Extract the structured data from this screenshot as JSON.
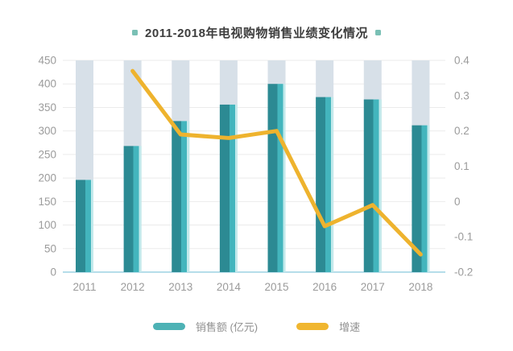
{
  "title": {
    "text": "2011-2018年电视购物销售业绩变化情况"
  },
  "legend": {
    "items": [
      {
        "label": "销售额 (亿元)"
      },
      {
        "label": "增速"
      }
    ]
  },
  "chart_data": {
    "type": "bar+line",
    "title": "2011-2018年电视购物销售业绩变化情况",
    "categories": [
      "2011",
      "2012",
      "2013",
      "2014",
      "2015",
      "2016",
      "2017",
      "2018"
    ],
    "series": [
      {
        "name": "销售额 (亿元)",
        "type": "bar",
        "axis": "left",
        "values": [
          196,
          268,
          321,
          356,
          400,
          372,
          367,
          312
        ]
      },
      {
        "name": "增速",
        "type": "line",
        "axis": "right",
        "values": [
          null,
          0.37,
          0.19,
          0.18,
          0.2,
          -0.07,
          -0.01,
          -0.15
        ]
      }
    ],
    "left_axis": {
      "min": 0,
      "max": 450,
      "ticks": [
        450,
        400,
        350,
        300,
        250,
        200,
        150,
        100,
        50,
        0
      ],
      "tick_labels": [
        "450",
        "400",
        "350",
        "300",
        "250",
        "200",
        "150",
        "100",
        "50",
        "0"
      ]
    },
    "right_axis": {
      "min": -0.2,
      "max": 0.4,
      "ticks": [
        0.4,
        0.3,
        0.2,
        0.1,
        0,
        -0.1,
        -0.2
      ],
      "tick_labels": [
        "0.4",
        "0.3",
        "0.2",
        "0.1",
        "0",
        "-0.1",
        "-0.2"
      ]
    },
    "grid": true,
    "legend_position": "bottom"
  },
  "colors": {
    "bar_dark": "#2c8a93",
    "bar_light": "#43b5bd",
    "bar_glow": "#c2e9eb",
    "bar_track": "#d7e0e8",
    "line": "#eeb32e",
    "grid": "#ebebeb",
    "baseline": "#b5dde9",
    "axis_text": "#9b9b9b",
    "title_text": "#3d3d3d",
    "title_square": "#7ac0b5",
    "legend_text": "#8f8f8f",
    "legend_bar_swatch": "#4db2b5",
    "legend_line_swatch": "#f0b630"
  }
}
